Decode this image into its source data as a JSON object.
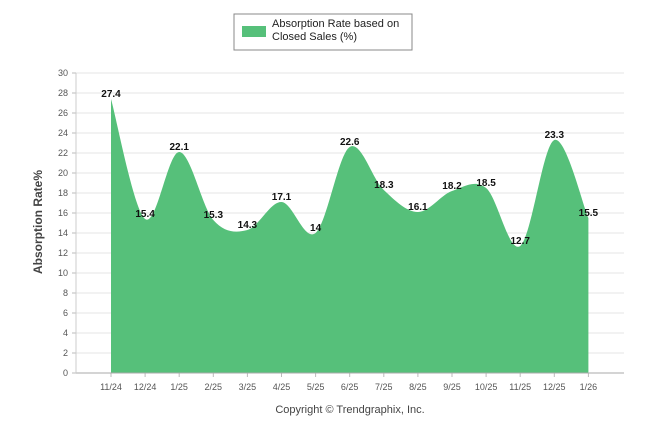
{
  "chart_data": {
    "type": "area",
    "legend": {
      "label_line1": "Absorption Rate based on",
      "label_line2": "Closed Sales (%)",
      "placement": "top-center"
    },
    "color": "#56c07a",
    "ylabel": "Absorption Rate%",
    "xlabel": "",
    "ylim": [
      0,
      30
    ],
    "ytick_step": 2,
    "grid": true,
    "categories": [
      "11/24",
      "12/24",
      "1/25",
      "2/25",
      "3/25",
      "4/25",
      "5/25",
      "6/25",
      "7/25",
      "8/25",
      "9/25",
      "10/25",
      "11/25",
      "12/25",
      "1/26"
    ],
    "values": [
      27.4,
      15.4,
      22.1,
      15.3,
      14.3,
      17.1,
      14,
      22.6,
      18.3,
      16.1,
      18.2,
      18.5,
      12.7,
      23.3,
      15.5
    ],
    "value_labels": [
      "27.4",
      "15.4",
      "22.1",
      "15.3",
      "14.3",
      "17.1",
      "14",
      "22.6",
      "18.3",
      "16.1",
      "18.2",
      "18.5",
      "12.7",
      "23.3",
      "15.5"
    ]
  },
  "footer": {
    "copyright": "Copyright © Trendgraphix, Inc."
  }
}
